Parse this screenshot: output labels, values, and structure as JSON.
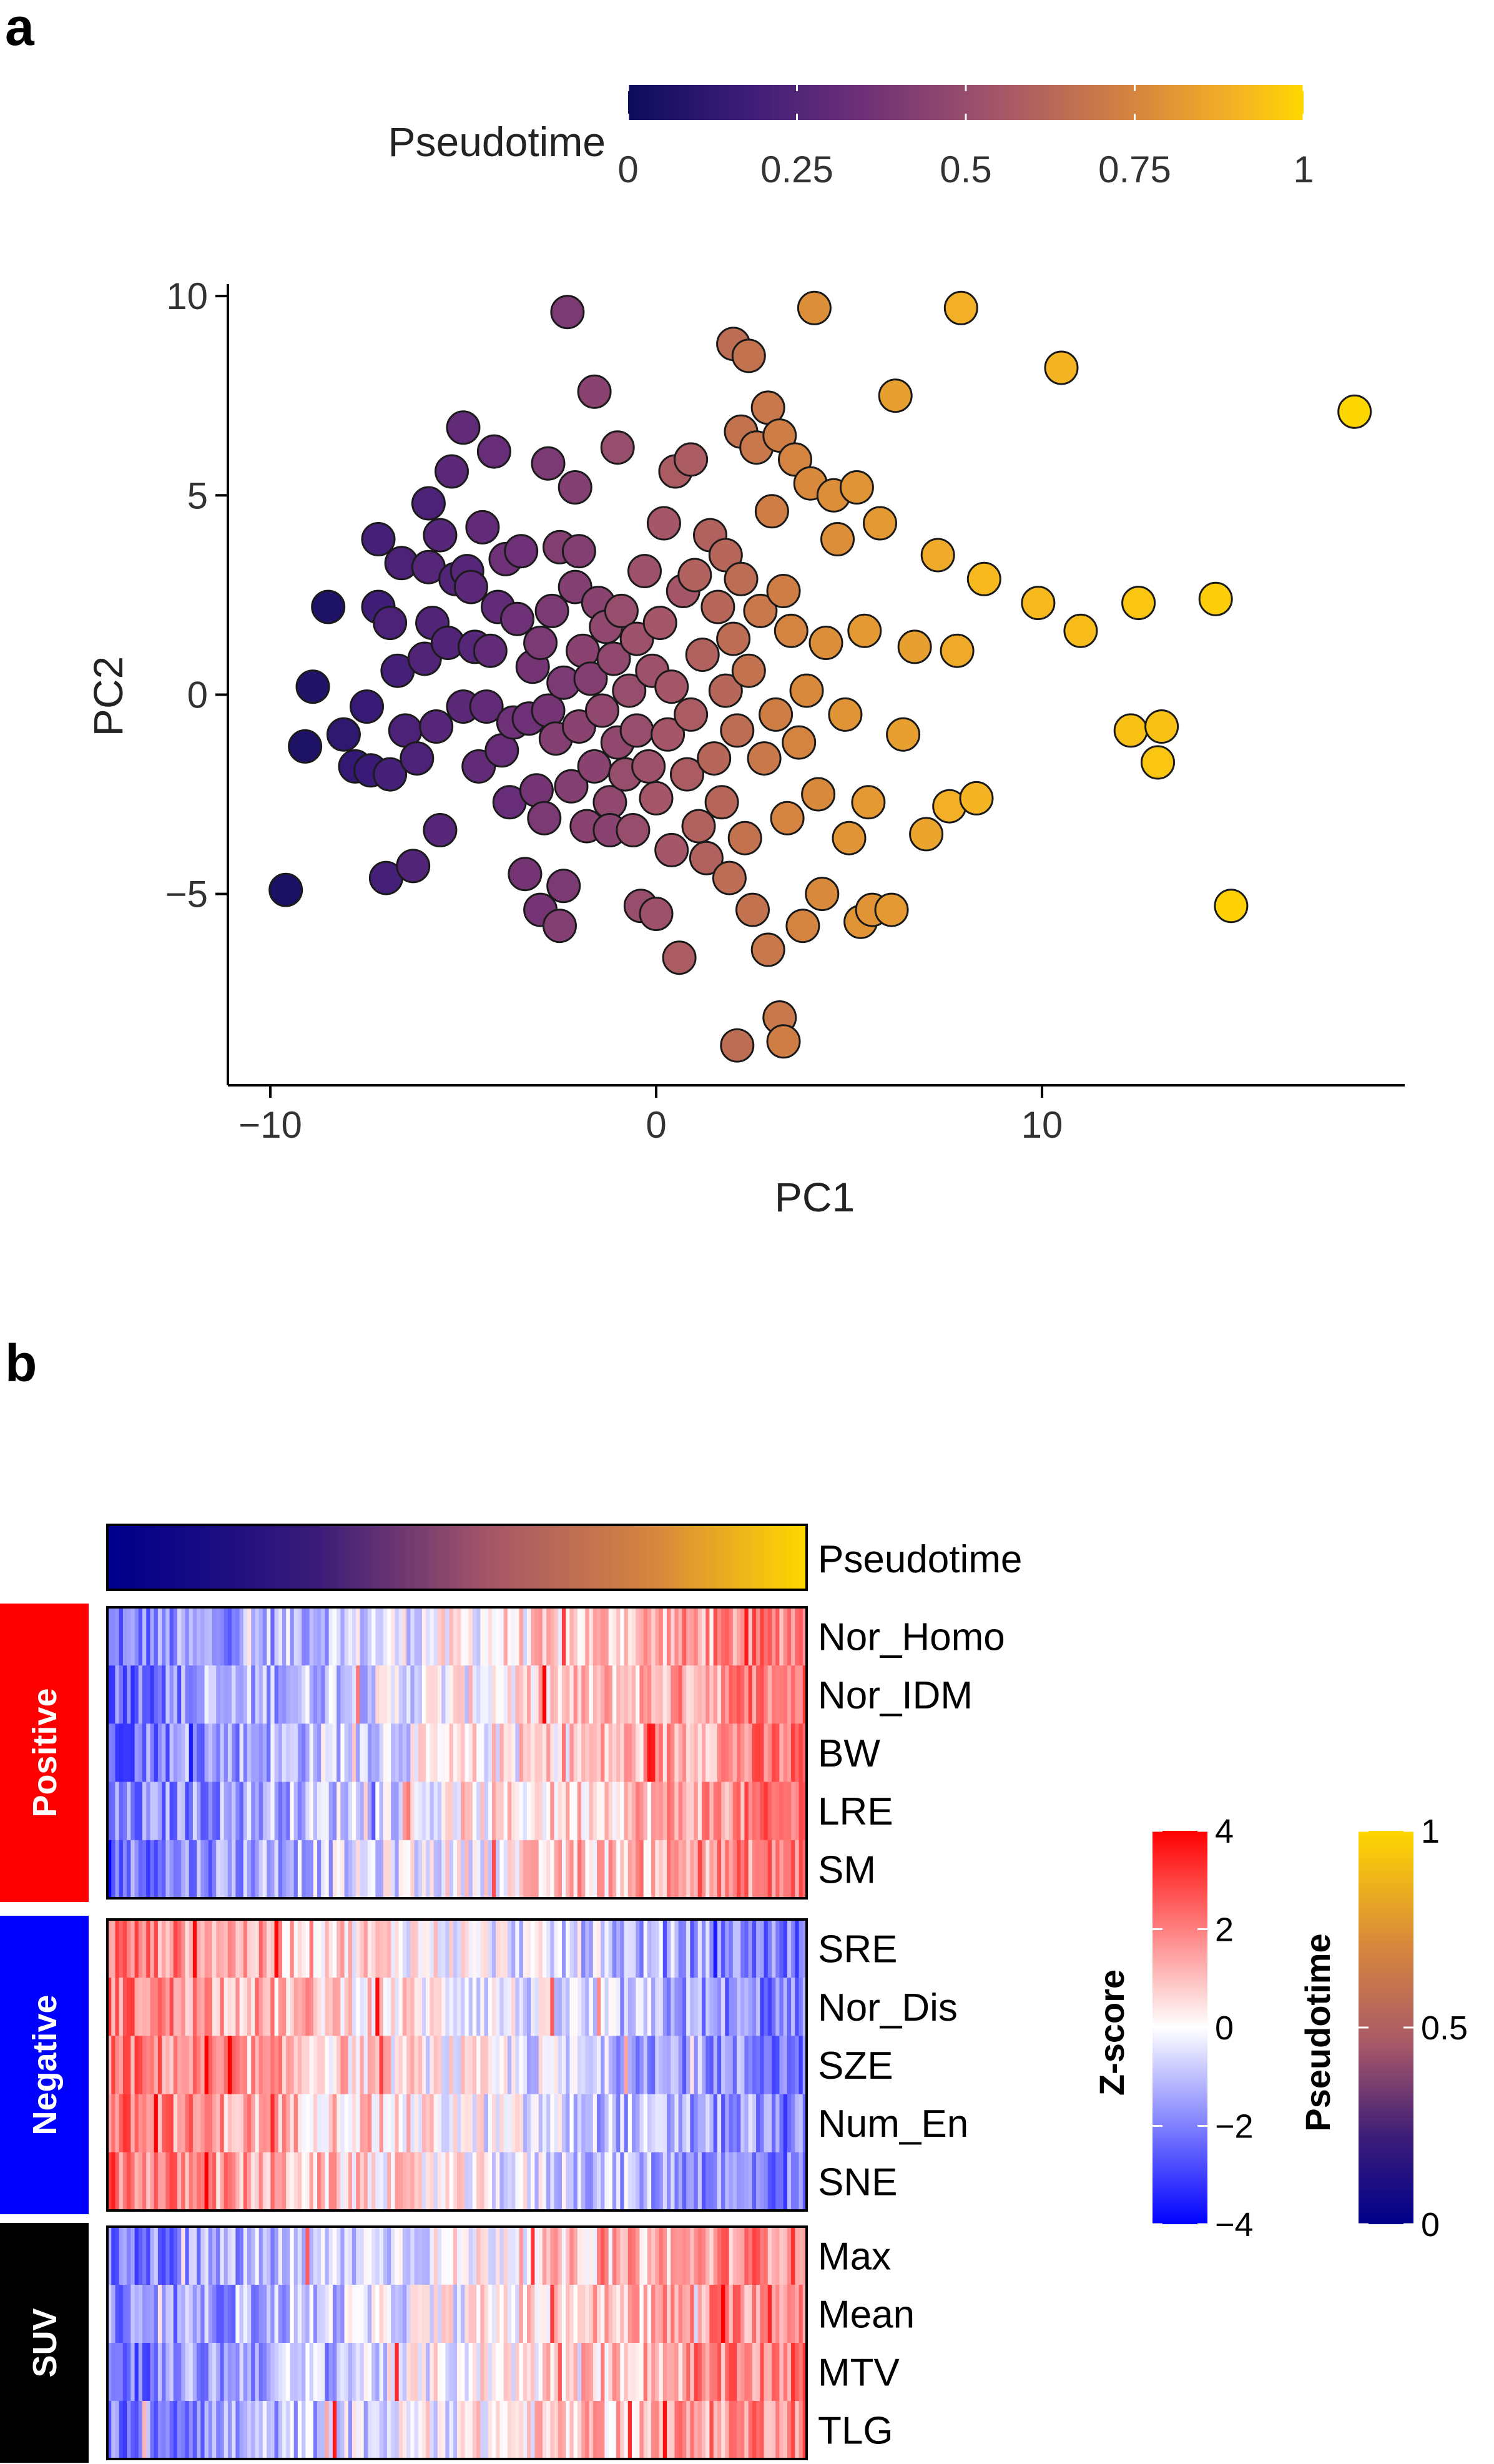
{
  "panels": {
    "a": "a",
    "b": "b"
  },
  "chart_data": [
    {
      "type": "scatter",
      "panel": "a",
      "xlabel": "PC1",
      "ylabel": "PC2",
      "xlim": [
        -11.1,
        19.4
      ],
      "ylim": [
        -9.8,
        10.3
      ],
      "xticks": [
        -10,
        0,
        10
      ],
      "xtick_labels": [
        "−10",
        "0",
        "10"
      ],
      "yticks": [
        -5,
        0,
        5,
        10
      ],
      "ytick_labels": [
        "−5",
        "0",
        "5",
        "10"
      ],
      "color_legend": {
        "title": "Pseudotime",
        "ticks": [
          0,
          0.25,
          0.5,
          0.75,
          1
        ],
        "tick_labels": [
          "0",
          "0.25",
          "0.5",
          "0.75",
          "1"
        ],
        "colors": [
          "#0c0c5c",
          "#3b1c78",
          "#6c2f78",
          "#a55668",
          "#d6853e",
          "#f5b324",
          "#ffd700"
        ]
      },
      "points": [
        [
          -9.6,
          -4.9,
          0.05
        ],
        [
          -9.1,
          -1.3,
          0.06
        ],
        [
          -8.9,
          0.2,
          0.07
        ],
        [
          -8.5,
          2.2,
          0.06
        ],
        [
          -8.1,
          -1.0,
          0.12
        ],
        [
          -7.8,
          -1.8,
          0.14
        ],
        [
          -7.5,
          -0.3,
          0.15
        ],
        [
          -7.4,
          -1.9,
          0.16
        ],
        [
          -7.2,
          3.9,
          0.2
        ],
        [
          -7.2,
          2.2,
          0.18
        ],
        [
          -7.0,
          -4.6,
          0.2
        ],
        [
          -6.9,
          1.8,
          0.22
        ],
        [
          -6.9,
          -2.0,
          0.2
        ],
        [
          -6.7,
          0.6,
          0.2
        ],
        [
          -6.6,
          3.3,
          0.22
        ],
        [
          -6.5,
          -0.9,
          0.22
        ],
        [
          -6.3,
          -4.3,
          0.24
        ],
        [
          -6.2,
          -1.6,
          0.22
        ],
        [
          -6.0,
          0.9,
          0.24
        ],
        [
          -5.9,
          3.2,
          0.26
        ],
        [
          -5.9,
          4.8,
          0.22
        ],
        [
          -5.8,
          1.8,
          0.24
        ],
        [
          -5.7,
          -0.8,
          0.26
        ],
        [
          -5.6,
          4.0,
          0.26
        ],
        [
          -5.6,
          -3.4,
          0.26
        ],
        [
          -5.4,
          1.3,
          0.24
        ],
        [
          -5.3,
          5.6,
          0.28
        ],
        [
          -5.2,
          2.9,
          0.24
        ],
        [
          -5.0,
          -0.3,
          0.28
        ],
        [
          -5.0,
          6.7,
          0.3
        ],
        [
          -4.9,
          3.1,
          0.26
        ],
        [
          -4.8,
          2.7,
          0.28
        ],
        [
          -4.7,
          1.2,
          0.26
        ],
        [
          -4.6,
          -1.8,
          0.3
        ],
        [
          -4.5,
          4.2,
          0.3
        ],
        [
          -4.4,
          -0.3,
          0.3
        ],
        [
          -4.3,
          1.1,
          0.3
        ],
        [
          -4.2,
          6.1,
          0.32
        ],
        [
          -4.1,
          2.2,
          0.3
        ],
        [
          -4.0,
          -1.4,
          0.32
        ],
        [
          -3.9,
          3.4,
          0.34
        ],
        [
          -3.8,
          -2.7,
          0.32
        ],
        [
          -3.7,
          -0.7,
          0.34
        ],
        [
          -3.6,
          1.9,
          0.34
        ],
        [
          -3.5,
          3.6,
          0.34
        ],
        [
          -3.4,
          -4.5,
          0.36
        ],
        [
          -3.3,
          -0.6,
          0.34
        ],
        [
          -3.2,
          0.7,
          0.36
        ],
        [
          -3.1,
          -2.4,
          0.36
        ],
        [
          -3.0,
          1.3,
          0.38
        ],
        [
          -3.0,
          -5.4,
          0.36
        ],
        [
          -2.9,
          -3.1,
          0.38
        ],
        [
          -2.8,
          5.8,
          0.38
        ],
        [
          -2.8,
          -0.4,
          0.36
        ],
        [
          -2.7,
          2.1,
          0.38
        ],
        [
          -2.6,
          -1.1,
          0.4
        ],
        [
          -2.5,
          -5.8,
          0.4
        ],
        [
          -2.5,
          3.7,
          0.4
        ],
        [
          -2.4,
          -4.8,
          0.38
        ],
        [
          -2.4,
          0.3,
          0.38
        ],
        [
          -2.3,
          9.6,
          0.38
        ],
        [
          -2.2,
          -2.3,
          0.4
        ],
        [
          -2.1,
          5.2,
          0.4
        ],
        [
          -2.1,
          2.7,
          0.4
        ],
        [
          -2.0,
          -0.8,
          0.42
        ],
        [
          -2.0,
          3.6,
          0.4
        ],
        [
          -1.9,
          1.1,
          0.42
        ],
        [
          -1.8,
          -3.3,
          0.42
        ],
        [
          -1.7,
          0.4,
          0.4
        ],
        [
          -1.6,
          7.6,
          0.42
        ],
        [
          -1.6,
          -1.8,
          0.42
        ],
        [
          -1.5,
          2.3,
          0.42
        ],
        [
          -1.4,
          -0.4,
          0.44
        ],
        [
          -1.3,
          1.7,
          0.44
        ],
        [
          -1.2,
          -2.7,
          0.44
        ],
        [
          -1.2,
          -3.4,
          0.42
        ],
        [
          -1.1,
          0.9,
          0.44
        ],
        [
          -1.0,
          6.2,
          0.46
        ],
        [
          -1.0,
          -1.2,
          0.44
        ],
        [
          -0.9,
          2.1,
          0.46
        ],
        [
          -0.8,
          -2.0,
          0.46
        ],
        [
          -0.7,
          0.1,
          0.46
        ],
        [
          -0.6,
          -3.4,
          0.46
        ],
        [
          -0.5,
          1.4,
          0.48
        ],
        [
          -0.5,
          -0.9,
          0.46
        ],
        [
          -0.4,
          -5.3,
          0.46
        ],
        [
          -0.3,
          3.1,
          0.48
        ],
        [
          -0.2,
          -1.8,
          0.48
        ],
        [
          -0.1,
          0.6,
          0.48
        ],
        [
          0.0,
          -2.6,
          0.5
        ],
        [
          0.0,
          -5.5,
          0.48
        ],
        [
          0.1,
          1.8,
          0.5
        ],
        [
          0.2,
          4.3,
          0.5
        ],
        [
          0.3,
          -1.0,
          0.5
        ],
        [
          0.4,
          -3.9,
          0.5
        ],
        [
          0.4,
          0.2,
          0.5
        ],
        [
          0.5,
          5.6,
          0.52
        ],
        [
          0.6,
          -6.6,
          0.52
        ],
        [
          0.7,
          2.6,
          0.5
        ],
        [
          0.8,
          -2.0,
          0.52
        ],
        [
          0.9,
          5.9,
          0.52
        ],
        [
          0.9,
          -0.5,
          0.52
        ],
        [
          1.0,
          3.0,
          0.54
        ],
        [
          1.1,
          -3.3,
          0.54
        ],
        [
          1.2,
          1.0,
          0.54
        ],
        [
          1.3,
          -4.1,
          0.54
        ],
        [
          1.4,
          4.0,
          0.54
        ],
        [
          1.5,
          -1.6,
          0.56
        ],
        [
          1.6,
          2.2,
          0.56
        ],
        [
          1.7,
          -2.7,
          0.56
        ],
        [
          1.8,
          3.5,
          0.56
        ],
        [
          1.8,
          0.1,
          0.56
        ],
        [
          1.9,
          -4.6,
          0.58
        ],
        [
          2.0,
          8.8,
          0.58
        ],
        [
          2.0,
          1.4,
          0.58
        ],
        [
          2.1,
          -8.8,
          0.58
        ],
        [
          2.1,
          -0.9,
          0.58
        ],
        [
          2.2,
          2.9,
          0.58
        ],
        [
          2.2,
          6.6,
          0.6
        ],
        [
          2.3,
          -3.6,
          0.6
        ],
        [
          2.4,
          0.6,
          0.6
        ],
        [
          2.4,
          8.5,
          0.6
        ],
        [
          2.5,
          -5.4,
          0.6
        ],
        [
          2.6,
          6.2,
          0.62
        ],
        [
          2.7,
          2.1,
          0.62
        ],
        [
          2.8,
          -1.6,
          0.62
        ],
        [
          2.9,
          -6.4,
          0.62
        ],
        [
          2.9,
          7.2,
          0.62
        ],
        [
          3.0,
          4.6,
          0.64
        ],
        [
          3.1,
          -0.5,
          0.64
        ],
        [
          3.2,
          6.5,
          0.64
        ],
        [
          3.2,
          -8.1,
          0.62
        ],
        [
          3.3,
          2.6,
          0.64
        ],
        [
          3.3,
          -8.7,
          0.64
        ],
        [
          3.4,
          -3.1,
          0.66
        ],
        [
          3.5,
          1.6,
          0.66
        ],
        [
          3.6,
          5.9,
          0.66
        ],
        [
          3.7,
          -1.2,
          0.66
        ],
        [
          3.8,
          -5.8,
          0.66
        ],
        [
          3.9,
          0.1,
          0.68
        ],
        [
          4.0,
          5.3,
          0.68
        ],
        [
          4.1,
          9.7,
          0.7
        ],
        [
          4.2,
          -2.5,
          0.68
        ],
        [
          4.3,
          -5.0,
          0.68
        ],
        [
          4.4,
          1.3,
          0.7
        ],
        [
          4.6,
          5.0,
          0.7
        ],
        [
          4.7,
          3.9,
          0.7
        ],
        [
          4.9,
          -0.5,
          0.72
        ],
        [
          5.0,
          -3.6,
          0.72
        ],
        [
          5.2,
          5.2,
          0.72
        ],
        [
          5.3,
          -5.7,
          0.72
        ],
        [
          5.4,
          1.6,
          0.74
        ],
        [
          5.5,
          -2.7,
          0.74
        ],
        [
          5.6,
          -5.4,
          0.72
        ],
        [
          5.8,
          4.3,
          0.74
        ],
        [
          6.1,
          -5.4,
          0.74
        ],
        [
          6.2,
          7.5,
          0.76
        ],
        [
          6.4,
          -1.0,
          0.76
        ],
        [
          6.7,
          1.2,
          0.76
        ],
        [
          7.0,
          -3.5,
          0.78
        ],
        [
          7.3,
          3.5,
          0.8
        ],
        [
          7.6,
          -2.8,
          0.82
        ],
        [
          7.8,
          1.1,
          0.8
        ],
        [
          7.9,
          9.7,
          0.82
        ],
        [
          8.3,
          -2.6,
          0.84
        ],
        [
          8.5,
          2.9,
          0.86
        ],
        [
          9.9,
          2.3,
          0.86
        ],
        [
          10.5,
          8.2,
          0.84
        ],
        [
          11.0,
          1.6,
          0.88
        ],
        [
          12.3,
          -0.9,
          0.9
        ],
        [
          12.5,
          2.3,
          0.92
        ],
        [
          13.0,
          -1.7,
          0.92
        ],
        [
          13.1,
          -0.8,
          0.9
        ],
        [
          14.5,
          2.4,
          0.96
        ],
        [
          14.9,
          -5.3,
          0.97
        ],
        [
          18.1,
          7.1,
          1.0
        ]
      ]
    },
    {
      "type": "heatmap",
      "panel": "b",
      "annotation_row": "Pseudotime",
      "groups": [
        {
          "name": "Positive",
          "color": "#ff0000",
          "rows": [
            "Nor_Homo",
            "Nor_IDM",
            "BW",
            "LRE",
            "SM"
          ]
        },
        {
          "name": "Negative",
          "color": "#0000ff",
          "rows": [
            "SRE",
            "Nor_Dis",
            "SZE",
            "Num_En",
            "SNE"
          ]
        },
        {
          "name": "SUV",
          "color": "#000000",
          "rows": [
            "Max",
            "Mean",
            "MTV",
            "TLG"
          ]
        }
      ],
      "columns_count": 180,
      "zscore_legend": {
        "title": "Z-score",
        "range": [
          -4,
          4
        ],
        "ticks": [
          4,
          2,
          0,
          -2,
          -4
        ],
        "tick_labels": [
          "4",
          "2",
          "0",
          "−2",
          "−4"
        ],
        "colors": [
          "#0000ff",
          "#ffffff",
          "#ff0000"
        ]
      },
      "pseudotime_legend": {
        "title": "Pseudotime",
        "range": [
          0,
          1
        ],
        "ticks": [
          1,
          0.5,
          0
        ],
        "tick_labels": [
          "1",
          "0.5",
          "0"
        ],
        "colors": [
          "#00008b",
          "#3b1c78",
          "#a55668",
          "#d6853e",
          "#ffd700"
        ]
      }
    }
  ]
}
